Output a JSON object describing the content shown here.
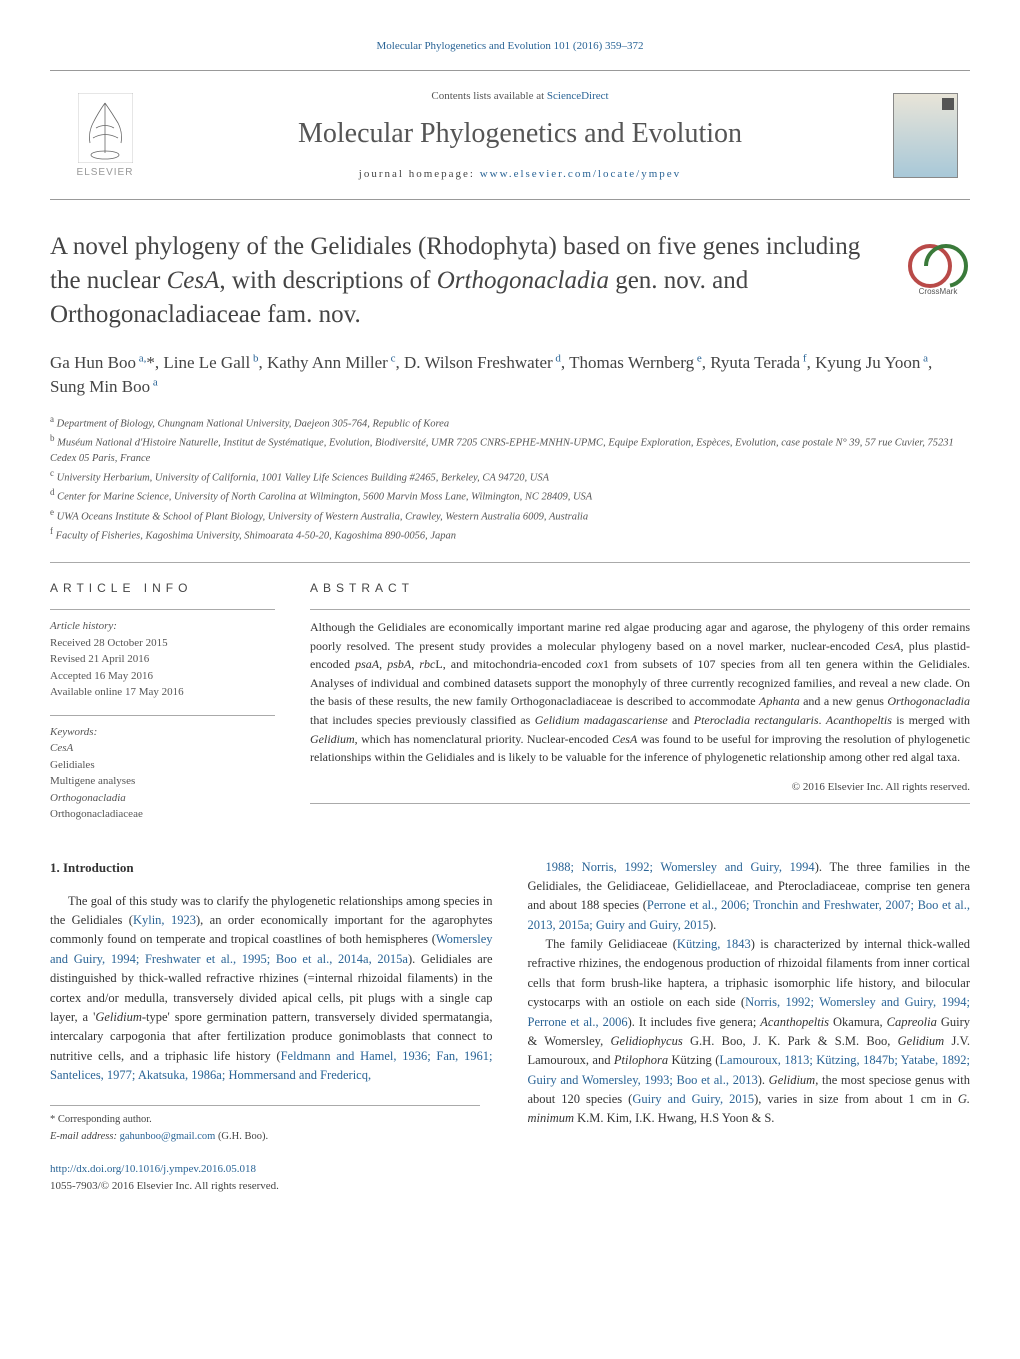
{
  "header": {
    "journal_ref": "Molecular Phylogenetics and Evolution 101 (2016) 359–372",
    "contents_line_prefix": "Contents lists available at ",
    "contents_line_link": "ScienceDirect",
    "journal_name": "Molecular Phylogenetics and Evolution",
    "homepage_prefix": "journal homepage: ",
    "homepage_url": "www.elsevier.com/locate/ympev",
    "elsevier_label": "ELSEVIER",
    "crossmark_label": "CrossMark"
  },
  "title": {
    "html": "A novel phylogeny of the Gelidiales (Rhodophyta) based on five genes including the nuclear <em>CesA</em>, with descriptions of <em>Orthogonacladia</em> gen. nov. and Orthogonacladiaceae fam. nov."
  },
  "authors": {
    "html": "Ga Hun Boo<sup> a,</sup>*, Line Le Gall<sup> b</sup>, Kathy Ann Miller<sup> c</sup>, D. Wilson Freshwater<sup> d</sup>, Thomas Wernberg<sup> e</sup>, Ryuta Terada<sup> f</sup>, Kyung Ju Yoon<sup> a</sup>, Sung Min Boo<sup> a</sup>"
  },
  "affiliations": [
    {
      "sup": "a",
      "text": "Department of Biology, Chungnam National University, Daejeon 305-764, Republic of Korea"
    },
    {
      "sup": "b",
      "text": "Muséum National d'Histoire Naturelle, Institut de Systématique, Evolution, Biodiversité, UMR 7205 CNRS-EPHE-MNHN-UPMC, Equipe Exploration, Espèces, Evolution, case postale N° 39, 57 rue Cuvier, 75231 Cedex 05 Paris, France"
    },
    {
      "sup": "c",
      "text": "University Herbarium, University of California, 1001 Valley Life Sciences Building #2465, Berkeley, CA 94720, USA"
    },
    {
      "sup": "d",
      "text": "Center for Marine Science, University of North Carolina at Wilmington, 5600 Marvin Moss Lane, Wilmington, NC 28409, USA"
    },
    {
      "sup": "e",
      "text": "UWA Oceans Institute & School of Plant Biology, University of Western Australia, Crawley, Western Australia 6009, Australia"
    },
    {
      "sup": "f",
      "text": "Faculty of Fisheries, Kagoshima University, Shimoarata 4-50-20, Kagoshima 890-0056, Japan"
    }
  ],
  "article_info": {
    "heading": "ARTICLE INFO",
    "history_label": "Article history:",
    "received": "Received 28 October 2015",
    "revised": "Revised 21 April 2016",
    "accepted": "Accepted 16 May 2016",
    "online": "Available online 17 May 2016",
    "keywords_label": "Keywords:",
    "keywords": [
      "CesA",
      "Gelidiales",
      "Multigene analyses",
      "Orthogonacladia",
      "Orthogonacladiaceae"
    ]
  },
  "abstract": {
    "heading": "ABSTRACT",
    "text_html": "Although the Gelidiales are economically important marine red algae producing agar and agarose, the phylogeny of this order remains poorly resolved. The present study provides a molecular phylogeny based on a novel marker, nuclear-encoded <em>CesA</em>, plus plastid-encoded <em>psaA</em>, <em>psbA</em>, <em>rbc</em>L, and mitochondria-encoded <em>cox</em>1 from subsets of 107 species from all ten genera within the Gelidiales. Analyses of individual and combined datasets support the monophyly of three currently recognized families, and reveal a new clade. On the basis of these results, the new family Orthogonacladiaceae is described to accommodate <em>Aphanta</em> and a new genus <em>Orthogonacladia</em> that includes species previously classified as <em>Gelidium madagascariense</em> and <em>Pterocladia rectangularis</em>. <em>Acanthopeltis</em> is merged with <em>Gelidium</em>, which has nomenclatural priority. Nuclear-encoded <em>CesA</em> was found to be useful for improving the resolution of phylogenetic relationships within the Gelidiales and is likely to be valuable for the inference of phylogenetic relationship among other red algal taxa.",
    "copyright": "© 2016 Elsevier Inc. All rights reserved."
  },
  "body": {
    "intro_heading": "1. Introduction",
    "left_html": "The goal of this study was to clarify the phylogenetic relationships among species in the Gelidiales (<span class='blue-link'>Kylin, 1923</span>), an order economically important for the agarophytes commonly found on temperate and tropical coastlines of both hemispheres (<span class='blue-link'>Womersley and Guiry, 1994; Freshwater et al., 1995; Boo et al., 2014a, 2015a</span>). Gelidiales are distinguished by thick-walled refractive rhizines (=internal rhizoidal filaments) in the cortex and/or medulla, transversely divided apical cells, pit plugs with a single cap layer, a '<em>Gelidium</em>-type' spore germination pattern, transversely divided spermatangia, intercalary carpogonia that after fertilization produce gonimoblasts that connect to nutritive cells, and a triphasic life history (<span class='blue-link'>Feldmann and Hamel, 1936; Fan, 1961; Santelices, 1977; Akatsuka, 1986a; Hommersand and Fredericq,</span>",
    "right_html": "<span class='blue-link'>1988; Norris, 1992; Womersley and Guiry, 1994</span>). The three families in the Gelidiales, the Gelidiaceae, Gelidiellaceae, and Pterocladiaceae, comprise ten genera and about 188 species (<span class='blue-link'>Perrone et al., 2006; Tronchin and Freshwater, 2007; Boo et al., 2013, 2015a; Guiry and Guiry, 2015</span>).</p><p>The family Gelidiaceae (<span class='blue-link'>Kützing, 1843</span>) is characterized by internal thick-walled refractive rhizines, the endogenous production of rhizoidal filaments from inner cortical cells that form brush-like haptera, a triphasic isomorphic life history, and bilocular cystocarps with an ostiole on each side (<span class='blue-link'>Norris, 1992; Womersley and Guiry, 1994; Perrone et al., 2006</span>). It includes five genera; <em>Acanthopeltis</em> Okamura, <em>Capreolia</em> Guiry & Womersley, <em>Gelidiophycus</em> G.H. Boo, J. K. Park & S.M. Boo, <em>Gelidium</em> J.V. Lamouroux, and <em>Ptilophora</em> Kützing (<span class='blue-link'>Lamouroux, 1813; Kützing, 1847b; Yatabe, 1892; Guiry and Womersley, 1993; Boo et al., 2013</span>). <em>Gelidium</em>, the most speciose genus with about 120 species (<span class='blue-link'>Guiry and Guiry, 2015</span>), varies in size from about 1 cm in <em>G. minimum</em> K.M. Kim, I.K. Hwang, H.S Yoon & S."
  },
  "footer": {
    "corr_label": "* Corresponding author.",
    "email_label": "E-mail address: ",
    "email": "gahunboo@gmail.com",
    "email_suffix": " (G.H. Boo).",
    "doi_url": "http://dx.doi.org/10.1016/j.ympev.2016.05.018",
    "copyright_line": "1055-7903/© 2016 Elsevier Inc. All rights reserved."
  },
  "colors": {
    "link": "#2a6496",
    "text": "#3a3a3a",
    "rule": "#aaaaaa"
  }
}
